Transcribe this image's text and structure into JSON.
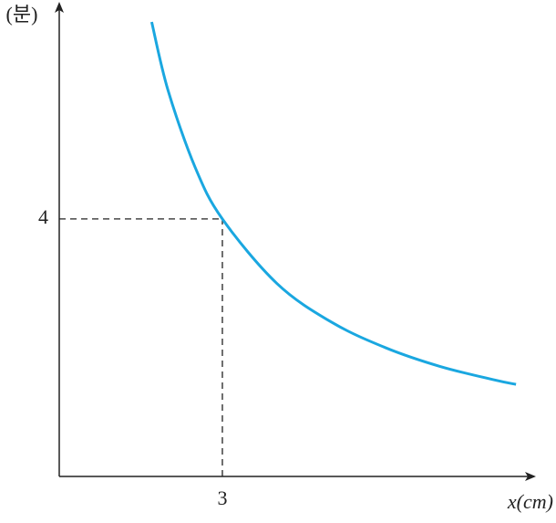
{
  "chart_data": {
    "type": "line",
    "x_label": "x(cm)",
    "y_label": "(분)",
    "x": [
      1.7,
      2,
      2.5,
      3,
      4,
      5,
      6,
      7,
      8,
      8.4
    ],
    "series": [
      {
        "color": "#1aa7e0",
        "values": [
          7.06,
          6,
          4.8,
          4,
          3,
          2.4,
          2,
          1.71,
          1.5,
          1.43
        ]
      }
    ],
    "xlim": [
      0,
      8.7
    ],
    "ylim": [
      0,
      7.33
    ],
    "xticks": [
      3
    ],
    "yticks": [
      4
    ],
    "guides": true
  }
}
